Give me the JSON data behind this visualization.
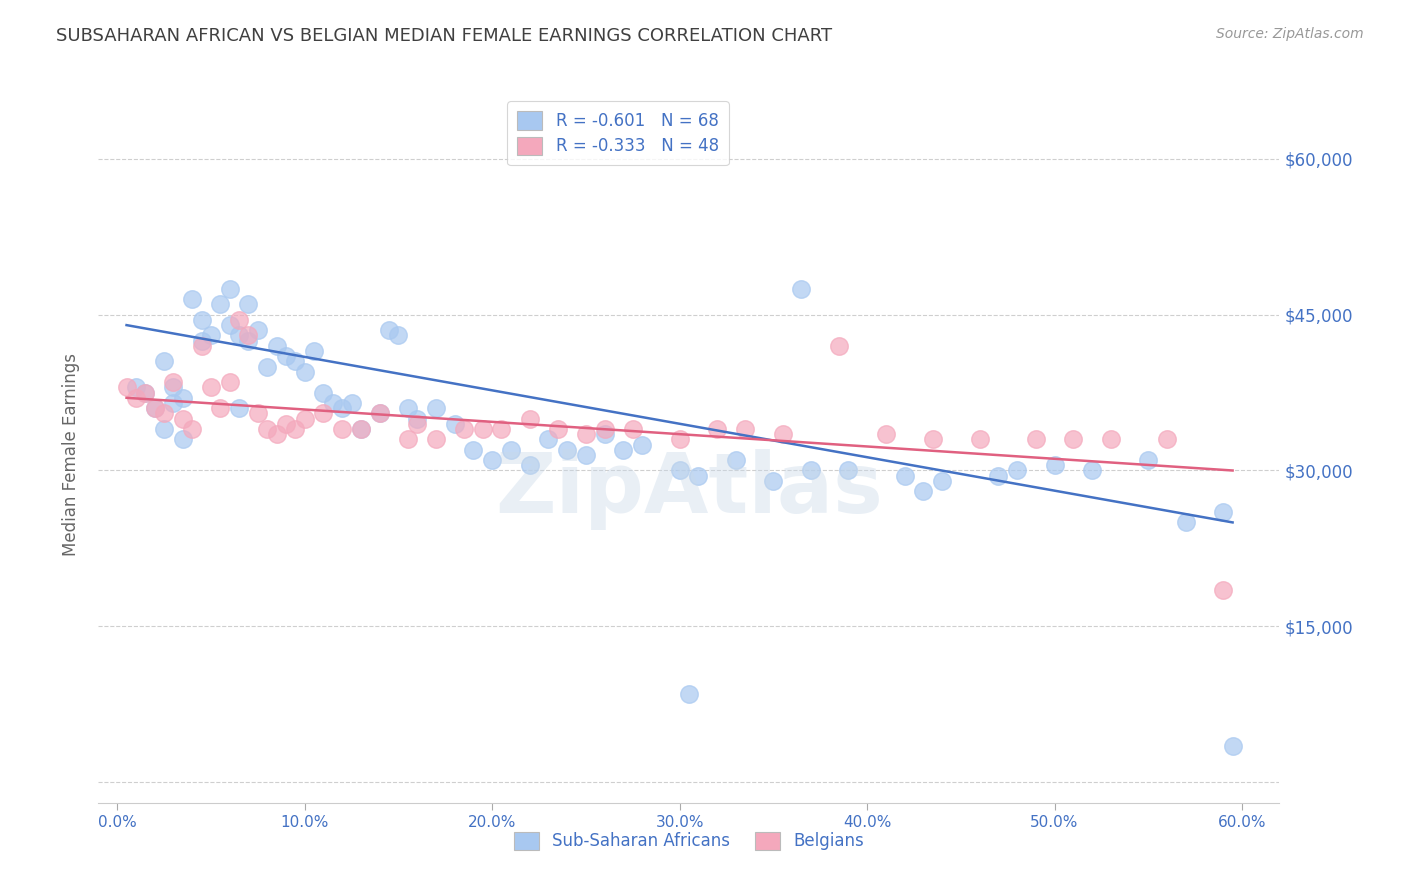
{
  "title": "SUBSAHARAN AFRICAN VS BELGIAN MEDIAN FEMALE EARNINGS CORRELATION CHART",
  "source": "Source: ZipAtlas.com",
  "ylabel": "Median Female Earnings",
  "xlabel_ticks": [
    "0.0%",
    "10.0%",
    "20.0%",
    "30.0%",
    "40.0%",
    "50.0%",
    "60.0%"
  ],
  "xlabel_vals": [
    0.0,
    10.0,
    20.0,
    30.0,
    40.0,
    50.0,
    60.0
  ],
  "yticks": [
    0,
    15000,
    30000,
    45000,
    60000
  ],
  "ytick_labels": [
    "",
    "$15,000",
    "$30,000",
    "$45,000",
    "$60,000"
  ],
  "ylim": [
    -2000,
    65000
  ],
  "xlim": [
    -1.0,
    62.0
  ],
  "legend1_r": "-0.601",
  "legend1_n": "68",
  "legend2_r": "-0.333",
  "legend2_n": "48",
  "legend_label1": "Sub-Saharan Africans",
  "legend_label2": "Belgians",
  "blue_color": "#A8C8F0",
  "pink_color": "#F4A8BC",
  "blue_line_color": "#4472C4",
  "pink_line_color": "#E06080",
  "title_color": "#404040",
  "axis_color": "#4472C4",
  "grid_color": "#BBBBBB",
  "watermark": "ZipAtlas",
  "watermark_color": "#C8D8E8",
  "blue_scatter_x": [
    1.0,
    1.5,
    2.0,
    2.5,
    2.5,
    3.0,
    3.0,
    3.5,
    3.5,
    4.0,
    4.5,
    4.5,
    5.0,
    5.5,
    6.0,
    6.0,
    6.5,
    6.5,
    7.0,
    7.0,
    7.5,
    8.0,
    8.5,
    9.0,
    9.5,
    10.0,
    10.5,
    11.0,
    11.5,
    12.0,
    12.5,
    13.0,
    14.0,
    14.5,
    15.0,
    15.5,
    16.0,
    17.0,
    18.0,
    19.0,
    20.0,
    21.0,
    22.0,
    23.0,
    24.0,
    25.0,
    26.0,
    27.0,
    28.0,
    30.0,
    31.0,
    33.0,
    35.0,
    37.0,
    39.0,
    42.0,
    44.0,
    47.0,
    50.0,
    52.0,
    55.0,
    57.0,
    59.0,
    30.5,
    43.0,
    36.5,
    48.0,
    59.5
  ],
  "blue_scatter_y": [
    38000,
    37500,
    36000,
    40500,
    34000,
    38000,
    36500,
    37000,
    33000,
    46500,
    44500,
    42500,
    43000,
    46000,
    47500,
    44000,
    43000,
    36000,
    46000,
    42500,
    43500,
    40000,
    42000,
    41000,
    40500,
    39500,
    41500,
    37500,
    36500,
    36000,
    36500,
    34000,
    35500,
    43500,
    43000,
    36000,
    35000,
    36000,
    34500,
    32000,
    31000,
    32000,
    30500,
    33000,
    32000,
    31500,
    33500,
    32000,
    32500,
    30000,
    29500,
    31000,
    29000,
    30000,
    30000,
    29500,
    29000,
    29500,
    30500,
    30000,
    31000,
    25000,
    26000,
    8500,
    28000,
    47500,
    30000,
    3500
  ],
  "pink_scatter_x": [
    0.5,
    1.0,
    1.5,
    2.0,
    2.5,
    3.0,
    3.5,
    4.0,
    4.5,
    5.0,
    5.5,
    6.0,
    6.5,
    7.0,
    7.5,
    8.0,
    8.5,
    9.0,
    9.5,
    10.0,
    11.0,
    12.0,
    13.0,
    14.0,
    15.5,
    16.0,
    17.0,
    18.5,
    19.5,
    20.5,
    22.0,
    23.5,
    25.0,
    26.0,
    27.5,
    30.0,
    32.0,
    33.5,
    35.5,
    38.5,
    41.0,
    43.5,
    46.0,
    49.0,
    51.0,
    53.0,
    56.0,
    59.0
  ],
  "pink_scatter_y": [
    38000,
    37000,
    37500,
    36000,
    35500,
    38500,
    35000,
    34000,
    42000,
    38000,
    36000,
    38500,
    44500,
    43000,
    35500,
    34000,
    33500,
    34500,
    34000,
    35000,
    35500,
    34000,
    34000,
    35500,
    33000,
    34500,
    33000,
    34000,
    34000,
    34000,
    35000,
    34000,
    33500,
    34000,
    34000,
    33000,
    34000,
    34000,
    33500,
    42000,
    33500,
    33000,
    33000,
    33000,
    33000,
    33000,
    33000,
    18500
  ]
}
